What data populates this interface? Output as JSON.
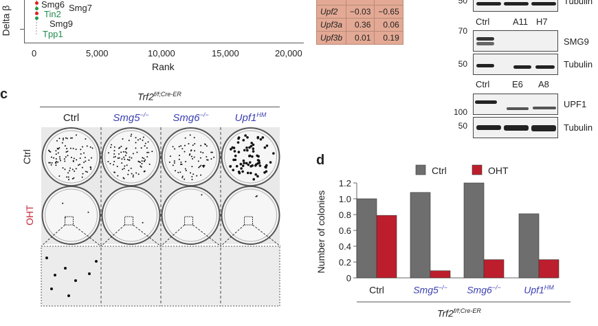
{
  "panel_b": {
    "ylabel": "Delta β",
    "xlabel": "Rank",
    "xticks": [
      "0",
      "5,000",
      "10,000",
      "15,000",
      "20,000"
    ],
    "genes": [
      {
        "name": "Smg6",
        "color": "#222222"
      },
      {
        "name": "Smg7",
        "color": "#222222"
      },
      {
        "name": "Tin2",
        "color": "#1f8a4c"
      },
      {
        "name": "Smg9",
        "color": "#222222"
      },
      {
        "name": "Tpp1",
        "color": "#1f8a4c"
      }
    ],
    "point_colors": {
      "red": "#e0201c",
      "green": "#1f9a4c"
    }
  },
  "table": {
    "rows": [
      [
        "Upf2",
        "−0.03",
        "−0.65"
      ],
      [
        "Upf3a",
        "0.36",
        "0.06"
      ],
      [
        "Upf3b",
        "0.01",
        "0.19"
      ]
    ]
  },
  "blots": {
    "top": {
      "mw": "50",
      "label": "Tubulin"
    },
    "set1": {
      "lanes": [
        "Ctrl",
        "A11",
        "H7"
      ],
      "rows": [
        {
          "mw": "70",
          "label": "SMG9"
        },
        {
          "mw": "50",
          "label": "Tubulin"
        }
      ]
    },
    "set2": {
      "lanes": [
        "Ctrl",
        "E6",
        "A8"
      ],
      "rows": [
        {
          "mw": "100",
          "label": "UPF1"
        },
        {
          "mw": "50",
          "label": "Tubulin"
        }
      ]
    }
  },
  "panel_c": {
    "label": "c",
    "genotype": "Trf2",
    "genotype_sup": "f/f;Cre-ER",
    "columns": [
      {
        "name": "Ctrl",
        "sup": ""
      },
      {
        "name": "Smg5",
        "sup": "−/−"
      },
      {
        "name": "Smg6",
        "sup": "−/−"
      },
      {
        "name": "Upf1",
        "sup": "HM"
      }
    ],
    "rows": [
      "Ctrl",
      "OHT"
    ]
  },
  "chart_data": {
    "type": "bar",
    "label": "d",
    "categories": [
      "Ctrl",
      "Smg5−/−",
      "Smg6−/−",
      "Upf1HM"
    ],
    "category_parts": [
      {
        "name": "Ctrl",
        "sup": ""
      },
      {
        "name": "Smg5",
        "sup": "−/−"
      },
      {
        "name": "Smg6",
        "sup": "−/−"
      },
      {
        "name": "Upf1",
        "sup": "HM"
      }
    ],
    "series": [
      {
        "name": "Ctrl",
        "color": "#6e6e6e",
        "values": [
          1.0,
          1.08,
          1.2,
          0.81
        ]
      },
      {
        "name": "OHT",
        "color": "#bd1e2d",
        "values": [
          0.79,
          0.09,
          0.23,
          0.23
        ]
      }
    ],
    "ylabel": "Number of colonies",
    "ylim": [
      0,
      1.2
    ],
    "yticks": [
      "0",
      "0.2",
      "0.4",
      "0.6",
      "0.8",
      "1.0",
      "1.2"
    ],
    "group_label": "Trf2",
    "group_label_sup": "f/f;Cre-ER",
    "legend": "top",
    "grid": false
  }
}
